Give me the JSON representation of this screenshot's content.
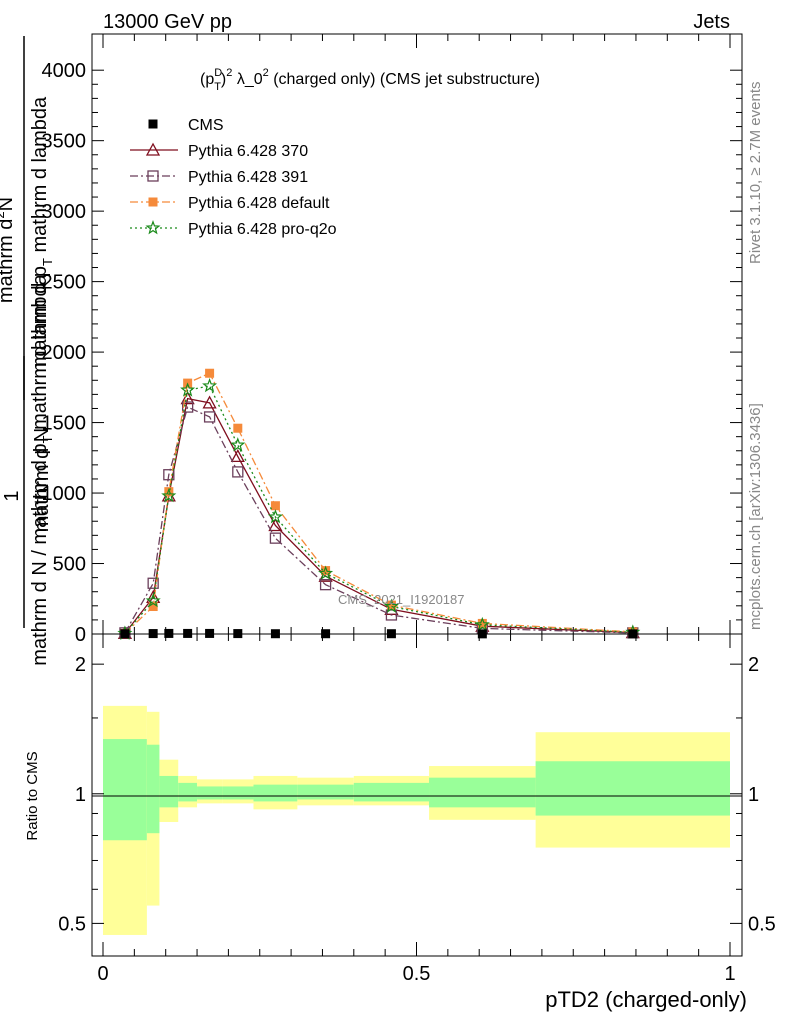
{
  "header": {
    "left": "13000 GeV pp",
    "right": "Jets"
  },
  "side_labels": {
    "rivet": "Rivet 3.1.10, ≥ 2.7M events",
    "mcplots": "mcplots.cern.ch [arXiv:1306.3436]"
  },
  "main_title": {
    "base": "(p",
    "sup_d": "D",
    "sub_t": "T",
    "close": ")",
    "sup_2": "2",
    "lambda": " λ_0",
    "sup_2b": "2",
    "rest": " (charged only) (CMS jet substructure)"
  },
  "ylabel": {
    "numer_1": "1",
    "denom_1": "mathrm d N",
    "numer_2": "mathrm d",
    "sup_n": "2",
    "numer_2b": "N",
    "denom_2": "mathrm d p",
    "sub_t2": "T",
    "denom_2b": " mathrm d lambda",
    "overlay": "mathrm d N / mathrm d p",
    "overlay_sub": "T",
    "overlay_b": " mathrm d lambda"
  },
  "watermark": "CMS_2021_I1920187",
  "ratio_ylabel": "Ratio to CMS",
  "xlabel": "pTD2 (charged-only)",
  "legend": [
    {
      "label": "CMS",
      "color": "#000000",
      "marker": "square-filled",
      "line": "none"
    },
    {
      "label": "Pythia 6.428 370",
      "color": "#7f0e1e",
      "marker": "triangle-open",
      "line": "solid"
    },
    {
      "label": "Pythia 6.428 391",
      "color": "#6b3f5b",
      "marker": "square-open",
      "line": "dashdot"
    },
    {
      "label": "Pythia 6.428 default",
      "color": "#f58a3a",
      "marker": "square-filled",
      "line": "dashdot"
    },
    {
      "label": "Pythia 6.428 pro-q2o",
      "color": "#1a8a1a",
      "marker": "star",
      "line": "dotted"
    }
  ],
  "chart_data": {
    "type": "line",
    "xlim": [
      0,
      1
    ],
    "ylim": [
      0,
      4200
    ],
    "xticks": [
      "0",
      "0.5",
      "1"
    ],
    "xtick_values": [
      0,
      0.5,
      1
    ],
    "yticks": [
      "0",
      "500",
      "1000",
      "1500",
      "2000",
      "2500",
      "3000",
      "3500",
      "4000"
    ],
    "ytick_values": [
      0,
      500,
      1000,
      1500,
      2000,
      2500,
      3000,
      3500,
      4000
    ],
    "x": [
      0.035,
      0.08,
      0.105,
      0.135,
      0.17,
      0.215,
      0.275,
      0.355,
      0.46,
      0.605,
      0.845
    ],
    "cms": [
      2,
      3,
      4,
      4,
      4,
      3,
      2,
      2,
      2,
      1,
      1
    ],
    "series": [
      {
        "name": "Pythia 6.428 370",
        "color": "#7f0e1e",
        "marker": "triangle-open",
        "dash": "",
        "values": [
          5,
          260,
          980,
          1670,
          1640,
          1260,
          770,
          410,
          175,
          55,
          10
        ]
      },
      {
        "name": "Pythia 6.428 391",
        "color": "#6b3f5b",
        "marker": "square-open",
        "dash": "8 3 2 3",
        "values": [
          8,
          360,
          1130,
          1610,
          1540,
          1150,
          680,
          350,
          135,
          40,
          8
        ]
      },
      {
        "name": "Pythia 6.428 default",
        "color": "#f58a3a",
        "marker": "square-filled",
        "dash": "8 3 2 3",
        "values": [
          4,
          195,
          1010,
          1780,
          1850,
          1460,
          910,
          450,
          205,
          75,
          15
        ]
      },
      {
        "name": "Pythia 6.428 pro-q2o",
        "color": "#1a8a1a",
        "marker": "star",
        "dash": "2 3",
        "values": [
          4,
          235,
          980,
          1730,
          1760,
          1340,
          830,
          430,
          195,
          65,
          12
        ]
      }
    ],
    "ratio": {
      "ylim_log": [
        0.42,
        2.35
      ],
      "yticks": [
        "0.5",
        "1",
        "2"
      ],
      "ytick_values": [
        0.5,
        1,
        2
      ],
      "bins": [
        {
          "x0": 0.0,
          "x1": 0.07,
          "in_lo": 0.78,
          "in_hi": 1.34,
          "out_lo": 0.47,
          "out_hi": 1.6
        },
        {
          "x0": 0.07,
          "x1": 0.09,
          "in_lo": 0.81,
          "in_hi": 1.3,
          "out_lo": 0.55,
          "out_hi": 1.55
        },
        {
          "x0": 0.09,
          "x1": 0.12,
          "in_lo": 0.93,
          "in_hi": 1.1,
          "out_lo": 0.86,
          "out_hi": 1.2
        },
        {
          "x0": 0.12,
          "x1": 0.15,
          "in_lo": 0.96,
          "in_hi": 1.06,
          "out_lo": 0.93,
          "out_hi": 1.1
        },
        {
          "x0": 0.15,
          "x1": 0.19,
          "in_lo": 0.97,
          "in_hi": 1.04,
          "out_lo": 0.95,
          "out_hi": 1.08
        },
        {
          "x0": 0.19,
          "x1": 0.24,
          "in_lo": 0.97,
          "in_hi": 1.04,
          "out_lo": 0.95,
          "out_hi": 1.08
        },
        {
          "x0": 0.24,
          "x1": 0.31,
          "in_lo": 0.96,
          "in_hi": 1.05,
          "out_lo": 0.92,
          "out_hi": 1.1
        },
        {
          "x0": 0.31,
          "x1": 0.4,
          "in_lo": 0.97,
          "in_hi": 1.05,
          "out_lo": 0.94,
          "out_hi": 1.09
        },
        {
          "x0": 0.4,
          "x1": 0.52,
          "in_lo": 0.96,
          "in_hi": 1.06,
          "out_lo": 0.94,
          "out_hi": 1.1
        },
        {
          "x0": 0.52,
          "x1": 0.69,
          "in_lo": 0.93,
          "in_hi": 1.09,
          "out_lo": 0.87,
          "out_hi": 1.16
        },
        {
          "x0": 0.69,
          "x1": 1.0,
          "in_lo": 0.89,
          "in_hi": 1.19,
          "out_lo": 0.75,
          "out_hi": 1.39
        }
      ],
      "colors": {
        "inner": "#99ff99",
        "outer": "#ffff99"
      }
    }
  }
}
